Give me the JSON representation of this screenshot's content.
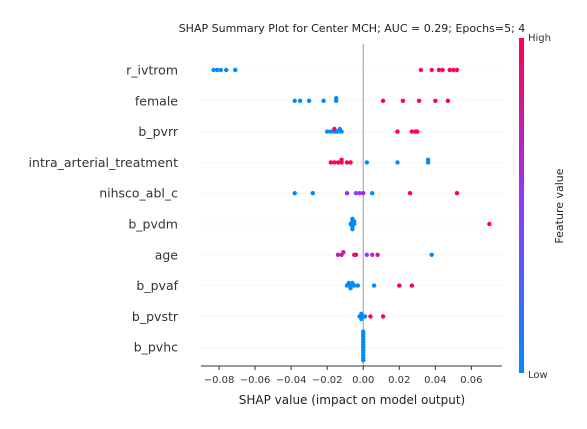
{
  "chart_data": {
    "type": "scatter",
    "title": "SHAP Summary Plot for Center MCH; AUC = 0.29; Epochs=5; 4",
    "xlabel": "SHAP value (impact on model output)",
    "xlim": [
      -0.09,
      0.077
    ],
    "xticks": [
      -0.08,
      -0.06,
      -0.04,
      -0.02,
      0.0,
      0.02,
      0.04,
      0.06
    ],
    "xtick_labels": [
      "−0.08",
      "−0.06",
      "−0.04",
      "−0.02",
      "0.00",
      "0.02",
      "0.04",
      "0.06"
    ],
    "colorbar": {
      "title": "Feature value",
      "high_label": "High",
      "low_label": "Low",
      "high_color": "#ff0052",
      "mid_color": "#8c3bff",
      "low_color": "#008bfb"
    },
    "features": [
      {
        "name": "r_ivtrom",
        "points": [
          [
            -0.081,
            0
          ],
          [
            -0.083,
            0
          ],
          [
            -0.079,
            0
          ],
          [
            -0.076,
            0
          ],
          [
            -0.071,
            0
          ],
          [
            0.032,
            1
          ],
          [
            0.038,
            1
          ],
          [
            0.042,
            1
          ],
          [
            0.044,
            1
          ],
          [
            0.048,
            1
          ],
          [
            0.05,
            1
          ],
          [
            0.052,
            1
          ]
        ]
      },
      {
        "name": "female",
        "points": [
          [
            -0.038,
            0
          ],
          [
            -0.035,
            0
          ],
          [
            -0.03,
            0
          ],
          [
            -0.022,
            0
          ],
          [
            -0.015,
            0
          ],
          [
            -0.015,
            0
          ],
          [
            0.011,
            1
          ],
          [
            0.022,
            1
          ],
          [
            0.031,
            1
          ],
          [
            0.04,
            1
          ],
          [
            0.047,
            1
          ]
        ]
      },
      {
        "name": "b_pvrr",
        "points": [
          [
            -0.02,
            0
          ],
          [
            -0.018,
            0
          ],
          [
            -0.016,
            0
          ],
          [
            -0.015,
            0
          ],
          [
            -0.014,
            0
          ],
          [
            -0.013,
            0
          ],
          [
            -0.012,
            0
          ],
          [
            -0.016,
            1
          ],
          [
            0.019,
            1
          ],
          [
            0.027,
            1
          ],
          [
            0.029,
            1
          ],
          [
            0.03,
            1
          ]
        ]
      },
      {
        "name": "intra_arterial_treatment",
        "points": [
          [
            -0.018,
            1
          ],
          [
            -0.016,
            1
          ],
          [
            -0.014,
            1
          ],
          [
            -0.012,
            1
          ],
          [
            -0.009,
            1
          ],
          [
            -0.007,
            1
          ],
          [
            -0.012,
            1
          ],
          [
            0.002,
            0
          ],
          [
            0.019,
            0
          ],
          [
            0.036,
            0
          ],
          [
            0.036,
            0
          ]
        ]
      },
      {
        "name": "nihsco_abl_c",
        "points": [
          [
            -0.038,
            0
          ],
          [
            -0.028,
            0
          ],
          [
            -0.009,
            0.55
          ],
          [
            -0.004,
            0.45
          ],
          [
            -0.002,
            0.5
          ],
          [
            0.0,
            0.7
          ],
          [
            0.005,
            0
          ],
          [
            0.026,
            1
          ],
          [
            0.052,
            1
          ]
        ]
      },
      {
        "name": "b_pvdm",
        "points": [
          [
            -0.007,
            0
          ],
          [
            -0.006,
            0
          ],
          [
            -0.006,
            0
          ],
          [
            -0.005,
            0
          ],
          [
            -0.005,
            0
          ],
          [
            -0.006,
            0
          ],
          [
            -0.006,
            0
          ],
          [
            0.07,
            1
          ]
        ]
      },
      {
        "name": "age",
        "points": [
          [
            -0.014,
            0.7
          ],
          [
            -0.012,
            0.75
          ],
          [
            -0.011,
            0.8
          ],
          [
            -0.005,
            0.85
          ],
          [
            0.002,
            0.5
          ],
          [
            0.005,
            0.6
          ],
          [
            0.008,
            0.9
          ],
          [
            -0.004,
            0.95
          ],
          [
            0.038,
            0
          ]
        ]
      },
      {
        "name": "b_pvaf",
        "points": [
          [
            -0.009,
            0
          ],
          [
            -0.008,
            0
          ],
          [
            -0.007,
            0
          ],
          [
            -0.006,
            0
          ],
          [
            -0.005,
            0
          ],
          [
            -0.003,
            0
          ],
          [
            -0.007,
            0
          ],
          [
            0.006,
            0
          ],
          [
            0.02,
            1
          ],
          [
            0.027,
            1
          ]
        ]
      },
      {
        "name": "b_pvstr",
        "points": [
          [
            -0.002,
            0
          ],
          [
            -0.001,
            0
          ],
          [
            0.0,
            0
          ],
          [
            0.001,
            0
          ],
          [
            -0.001,
            0
          ],
          [
            0.004,
            1
          ],
          [
            0.011,
            1
          ]
        ]
      },
      {
        "name": "b_pvhc",
        "points": [
          [
            0.0,
            0
          ],
          [
            0.0,
            0
          ],
          [
            0.0,
            0
          ],
          [
            0.0,
            0
          ],
          [
            0.0,
            0
          ],
          [
            0.0,
            0
          ],
          [
            0.0,
            0
          ],
          [
            0.0,
            0
          ],
          [
            0.0,
            0
          ],
          [
            0.0,
            0
          ],
          [
            0.0,
            0
          ],
          [
            0.0,
            0
          ]
        ]
      }
    ]
  }
}
